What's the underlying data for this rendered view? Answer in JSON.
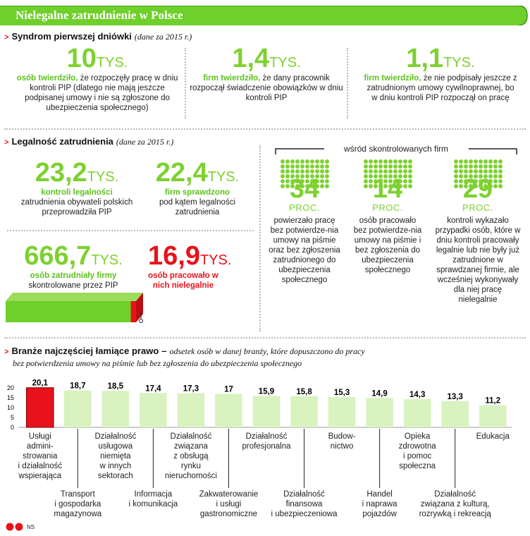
{
  "header": {
    "title": "Nielegalne zatrudnienie w Polsce"
  },
  "section1": {
    "title": "Syndrom pierwszej dniówki",
    "subtitle": "(dane za 2015 r.)",
    "stats": [
      {
        "value": "10",
        "unit": "TYS.",
        "lead": "osób twierdziło,",
        "text": "że rozpoczęły pracę w dniu kontroli PIP (dlatego nie mają jeszcze podpisanej umowy i nie są zgłoszone do ubezpieczenia społecznego)"
      },
      {
        "value": "1,4",
        "unit": "TYS.",
        "lead": "firm twierdziło,",
        "text": "że dany pracownik rozpoczął świadczenie obowiązków w dniu kontroli PIP"
      },
      {
        "value": "1,1",
        "unit": "TYS.",
        "lead": "firm twierdziło,",
        "text": "że nie podpisały jeszcze z zatrudnionym umowy cywilnoprawnej, bo w dniu kontroli PIP rozpoczął on pracę"
      }
    ]
  },
  "section2": {
    "title": "Legalność zatrudnienia",
    "subtitle": "(dane za 2015 r.)",
    "stat_a": {
      "value": "23,2",
      "unit": "TYS.",
      "lead": "kontroli legalności",
      "text": "zatrudnienia obywateli polskich przeprowadziła PIP"
    },
    "stat_b": {
      "value": "22,4",
      "unit": "TYS.",
      "lead": "firm sprawdzono",
      "text": "pod kątem legalności zatrudnienia"
    },
    "stat_c": {
      "value": "666,7",
      "unit": "TYS.",
      "lead": "osób zatrudniały firmy",
      "text": "skontrolowane przez PIP"
    },
    "stat_d": {
      "value": "16,9",
      "unit": "TYS.",
      "text": "osób pracowało w nich nielegalnie"
    },
    "share_illegal": 0.025,
    "bracket_label": "wśród skontrolowanych firm",
    "percents": [
      {
        "value": "34",
        "unit": "PROC.",
        "text": "powierzało pracę bez potwierdze-nia umowy na piśmie oraz bez zgłoszenia zatrudnionego do ubezpieczenia społecznego"
      },
      {
        "value": "14",
        "unit": "PROC.",
        "text": "osób pracowało bez potwierdze-nia umowy na piśmie i bez zgłoszenia do ubezpieczenia społecznego"
      },
      {
        "value": "29",
        "unit": "PROC.",
        "text": "kontroli wykazało przypadki osób, które w dniu kontroli pracowały legalnie lub nie były już zatrudnione w sprawdzanej firmie, ale wcześniej wykonywały dla niej pracę nielegalnie"
      }
    ]
  },
  "section3": {
    "title": "Branże najczęściej łamiące prawo",
    "dash": "–",
    "subtitle_line1": "odsetek osób w danej branży, które dopuszczono do pracy",
    "subtitle_line2": "bez potwierdzenia umowy na piśmie lub bez zgłoszenia do ubezpieczenia społecznego"
  },
  "chart_data": {
    "type": "bar",
    "ylim": [
      0,
      20
    ],
    "yticks": [
      "20",
      "15",
      "10",
      "5",
      "0"
    ],
    "value_labels": [
      "20,1",
      "18,7",
      "18,5",
      "17,4",
      "17,3",
      "17",
      "15,9",
      "15,8",
      "15,3",
      "14,9",
      "14,3",
      "13,3",
      "11,2"
    ],
    "values": [
      20.1,
      18.7,
      18.5,
      17.4,
      17.3,
      17,
      15.9,
      15.8,
      15.3,
      14.9,
      14.3,
      13.3,
      11.2
    ],
    "categories": [
      "Usługi\nadmini-\nstrowania\ni działalność\nwspierająca",
      "Transport\ni gospodarka\nmagazynowa",
      "Działalność\nusługowa\nniemięta\nw innych\nsektorach",
      "Informacja\ni komunikacja",
      "Działalność\nzwiązana\nz obsługą\nrynku\nnieruchomości",
      "Zakwaterowanie\ni usługi\ngastronomiczne",
      "Działalność\nprofesjonalna",
      "Działalność\nfinansowa\ni ubezpieczeniowa",
      "Budow-\nnictwo",
      "Handel\ni naprawa\npojazdów",
      "Opieka\nzdrowotna\ni pomoc\nspołeczna",
      "Działalność\nzwiązana z kulturą,\nrozrywką i rekreacją",
      "Edukacja"
    ],
    "highlight_color": "#e8121b",
    "bar_color": "#d9f2c0"
  },
  "footer": {
    "logo": "GP",
    "credit": "NS"
  }
}
